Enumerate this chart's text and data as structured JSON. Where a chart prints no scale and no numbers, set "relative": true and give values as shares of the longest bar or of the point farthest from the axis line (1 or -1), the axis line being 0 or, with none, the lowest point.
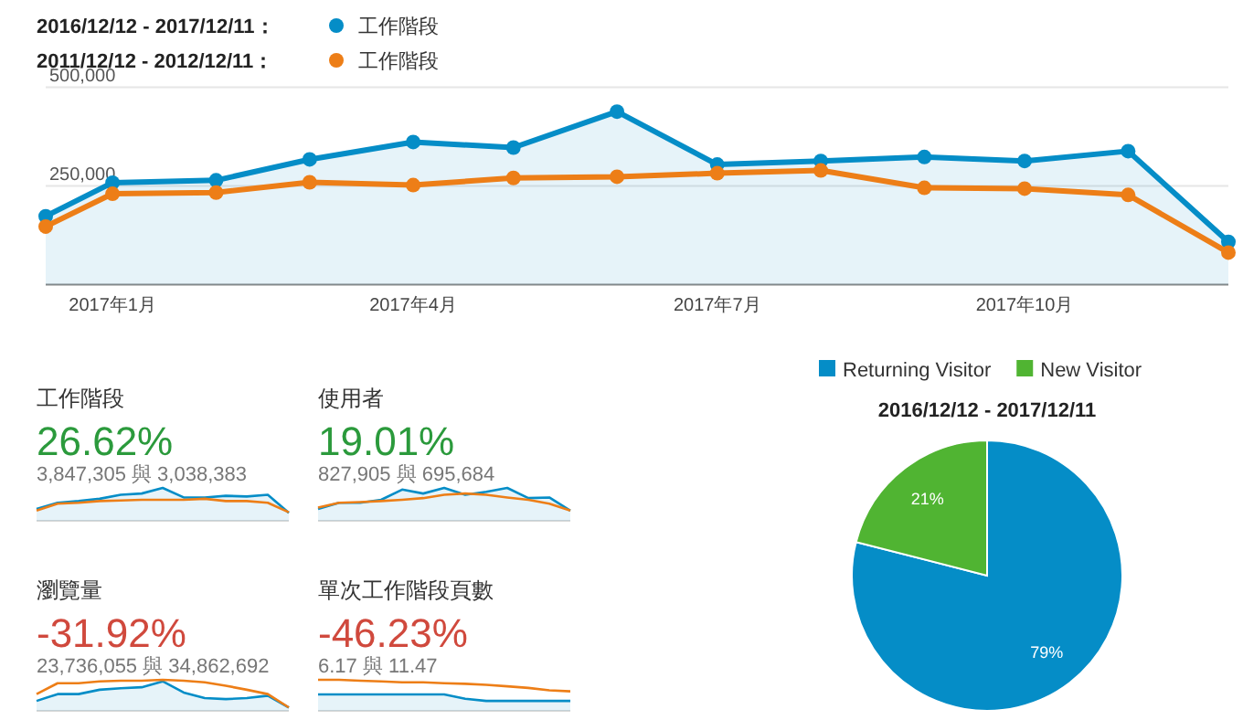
{
  "chart_data": [
    {
      "type": "line",
      "x": [
        "2016-12-12",
        "2017-01-01",
        "2017-02-01",
        "2017-03-01",
        "2017-04-01",
        "2017-05-01",
        "2017-06-01",
        "2017-07-01",
        "2017-08-01",
        "2017-09-01",
        "2017-10-01",
        "2017-11-01",
        "2017-12-01"
      ],
      "xlim": [
        "2016-12-12",
        "2017-12-01"
      ],
      "xticks": [
        {
          "value": "2017-01-01",
          "label": "2017年1月"
        },
        {
          "value": "2017-04-01",
          "label": "2017年4月"
        },
        {
          "value": "2017-07-01",
          "label": "2017年7月"
        },
        {
          "value": "2017-10-01",
          "label": "2017年10月"
        }
      ],
      "ylim": [
        0,
        500000
      ],
      "yticks": [
        {
          "value": 250000,
          "label": "250,000"
        },
        {
          "value": 500000,
          "label": "500,000"
        }
      ],
      "grid": "y",
      "legend": "top",
      "marker": "circle",
      "series": [
        {
          "name": "2016/12/12 - 2017/12/11：工作階段",
          "type": "area",
          "color": "#058dc7",
          "values": [
            173000,
            258000,
            264000,
            317000,
            361000,
            347000,
            438000,
            304000,
            313000,
            323000,
            313000,
            338000,
            108000
          ]
        },
        {
          "name": "2011/12/12 - 2012/12/11：工作階段",
          "color": "#ed7e17",
          "values": [
            147000,
            230000,
            233000,
            259000,
            252000,
            270000,
            273000,
            282000,
            289000,
            245000,
            243000,
            227000,
            81000
          ]
        }
      ]
    },
    {
      "type": "line",
      "relative": true,
      "title": "工作階段",
      "subtitle": "26.62%",
      "annotations": [
        "3,847,305 與 3,038,383"
      ],
      "categories": [
        null,
        null,
        null,
        null,
        null,
        null,
        null,
        null,
        null,
        null,
        null,
        null,
        null
      ],
      "series": [
        {
          "type": "area",
          "color": "#058dc7",
          "values": [
            0.36,
            0.55,
            0.6,
            0.67,
            0.79,
            0.83,
            1,
            0.71,
            0.71,
            0.76,
            0.74,
            0.79,
            0.24
          ]
        },
        {
          "color": "#ed7e17",
          "values": [
            0.31,
            0.52,
            0.55,
            0.6,
            0.62,
            0.64,
            0.64,
            0.64,
            0.67,
            0.6,
            0.6,
            0.55,
            0.26
          ]
        }
      ]
    },
    {
      "type": "line",
      "relative": true,
      "title": "使用者",
      "subtitle": "19.01%",
      "annotations": [
        "827,905 與 695,684"
      ],
      "categories": [
        null,
        null,
        null,
        null,
        null,
        null,
        null,
        null,
        null,
        null,
        null,
        null,
        null
      ],
      "series": [
        {
          "type": "area",
          "color": "#058dc7",
          "values": [
            0.36,
            0.55,
            0.55,
            0.64,
            0.95,
            0.83,
            1,
            0.79,
            0.88,
            1,
            0.69,
            0.71,
            0.31
          ]
        },
        {
          "color": "#ed7e17",
          "values": [
            0.4,
            0.55,
            0.57,
            0.6,
            0.64,
            0.69,
            0.79,
            0.83,
            0.79,
            0.71,
            0.64,
            0.52,
            0.31
          ]
        }
      ]
    },
    {
      "type": "line",
      "relative": true,
      "title": "瀏覽量",
      "subtitle": "-31.92%",
      "annotations": [
        "23,736,055 與 34,862,692"
      ],
      "categories": [
        null,
        null,
        null,
        null,
        null,
        null,
        null,
        null,
        null,
        null,
        null,
        null,
        null
      ],
      "series": [
        {
          "type": "area",
          "color": "#058dc7",
          "values": [
            0.32,
            0.54,
            0.54,
            0.68,
            0.73,
            0.76,
            0.95,
            0.59,
            0.41,
            0.38,
            0.41,
            0.49,
            0.11
          ]
        },
        {
          "color": "#ed7e17",
          "values": [
            0.54,
            0.89,
            0.89,
            0.95,
            0.97,
            0.97,
            1,
            0.97,
            0.92,
            0.81,
            0.68,
            0.54,
            0.11
          ]
        }
      ]
    },
    {
      "type": "line",
      "relative": true,
      "title": "單次工作階段頁數",
      "subtitle": "-46.23%",
      "annotations": [
        "6.17 與 11.47"
      ],
      "categories": [
        null,
        null,
        null,
        null,
        null,
        null,
        null,
        null,
        null,
        null,
        null,
        null,
        null
      ],
      "series": [
        {
          "type": "area",
          "color": "#058dc7",
          "values": [
            0.53,
            0.53,
            0.53,
            0.53,
            0.53,
            0.53,
            0.53,
            0.39,
            0.32,
            0.32,
            0.32,
            0.32,
            0.32
          ]
        },
        {
          "color": "#ed7e17",
          "values": [
            1,
            1,
            0.97,
            0.95,
            0.92,
            0.92,
            0.89,
            0.87,
            0.84,
            0.79,
            0.74,
            0.66,
            0.63
          ]
        }
      ]
    },
    {
      "type": "pie",
      "title": "2016/12/12 - 2017/12/11",
      "legend": "top",
      "categories": [
        "Returning Visitor",
        "New Visitor"
      ],
      "values": [
        79,
        21
      ],
      "colors": [
        "#058dc7",
        "#50b432"
      ],
      "value_labels": [
        "79%",
        "21%"
      ]
    }
  ]
}
